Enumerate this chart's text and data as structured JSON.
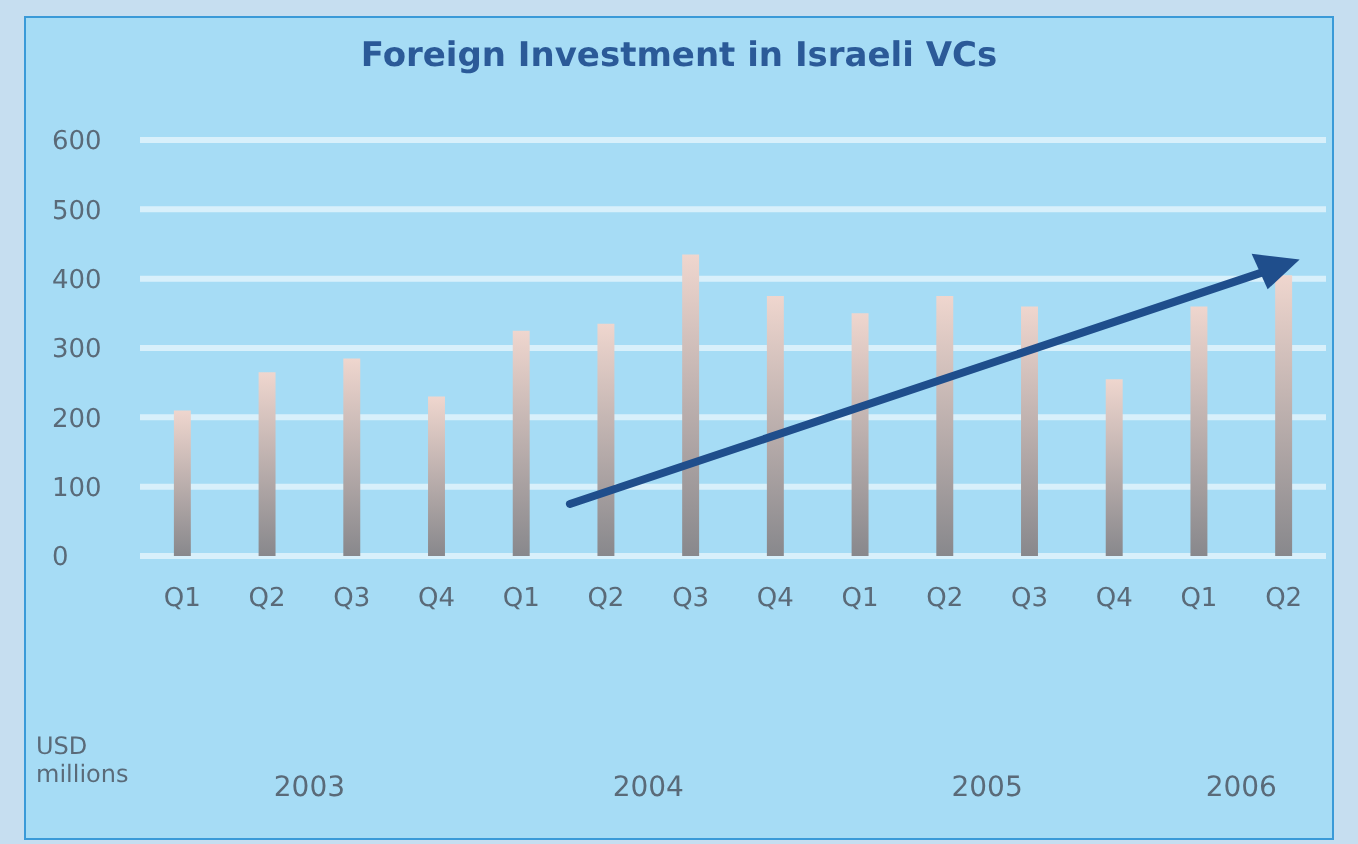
{
  "chart_data": {
    "type": "bar",
    "title": "Foreign Investment in Israeli VCs",
    "ylabel": "USD millions",
    "categories": [
      "Q1",
      "Q2",
      "Q3",
      "Q4",
      "Q1",
      "Q2",
      "Q3",
      "Q4",
      "Q1",
      "Q2",
      "Q3",
      "Q4",
      "Q1",
      "Q2"
    ],
    "values": [
      210,
      265,
      285,
      230,
      325,
      335,
      435,
      375,
      350,
      375,
      360,
      255,
      360,
      405
    ],
    "color": "#88888c",
    "ylim": [
      0,
      600
    ],
    "yticks": [
      0,
      100,
      200,
      300,
      400,
      500,
      600
    ],
    "grid": "y",
    "annotations": [
      "2003",
      "2004",
      "2005",
      "2006"
    ]
  }
}
